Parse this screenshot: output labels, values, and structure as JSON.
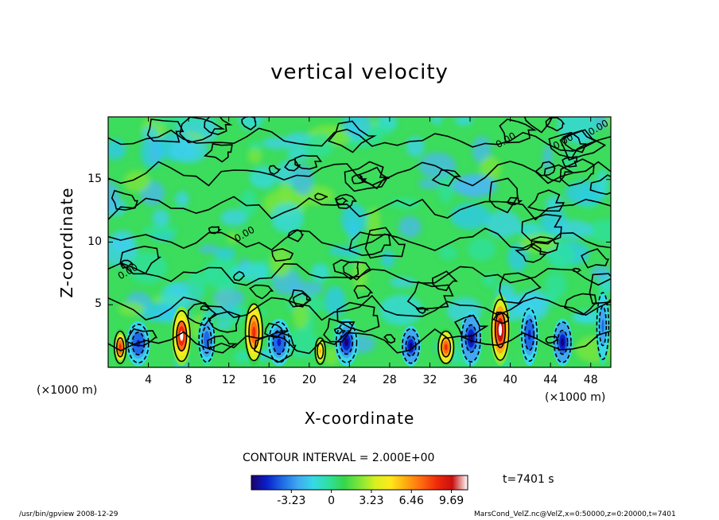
{
  "chart_data": {
    "type": "heatmap",
    "title": "vertical velocity",
    "xlabel": "X-coordinate",
    "ylabel": "Z-coordinate",
    "x_scale_left": "(×1000 m)",
    "x_scale_right": "(×1000 m)",
    "xlim": [
      0,
      50
    ],
    "ylim": [
      0,
      20
    ],
    "x_ticks": [
      "4",
      "8",
      "12",
      "16",
      "20",
      "24",
      "28",
      "32",
      "36",
      "40",
      "44",
      "48"
    ],
    "y_ticks": [
      "5",
      "10",
      "15"
    ],
    "contour_labels": [
      "0.00",
      "0.00",
      "0.00",
      "0.00",
      "0.00"
    ],
    "contour_interval": "CONTOUR INTERVAL = 2.000E+00",
    "colorbar": {
      "ticks": [
        "-3.23",
        "0",
        "3.23",
        "6.46",
        "9.69"
      ],
      "range": [
        -6.46,
        11.0
      ],
      "colors": [
        "#1a006e",
        "#0a1fc8",
        "#1e6ae6",
        "#3fa8f0",
        "#37d8e8",
        "#2fe0a0",
        "#35d64a",
        "#7ee63a",
        "#d6f020",
        "#ffe81c",
        "#ffaa10",
        "#ff6a10",
        "#f02a0a",
        "#c81010",
        "#ffffff"
      ]
    },
    "cells": [
      {
        "x": 1.2,
        "z": 1.6,
        "w": 0.7,
        "v": 8.5
      },
      {
        "x": 3.0,
        "z": 1.9,
        "w": 1.2,
        "v": -5.5
      },
      {
        "x": 7.3,
        "z": 2.5,
        "w": 1.0,
        "v": 10.5
      },
      {
        "x": 9.8,
        "z": 2.2,
        "w": 0.9,
        "v": -4.5
      },
      {
        "x": 14.5,
        "z": 2.8,
        "w": 1.0,
        "v": 9.0
      },
      {
        "x": 17.0,
        "z": 2.0,
        "w": 1.2,
        "v": -5.5
      },
      {
        "x": 21.1,
        "z": 1.3,
        "w": 0.6,
        "v": 6.0
      },
      {
        "x": 23.7,
        "z": 2.0,
        "w": 1.2,
        "v": -6.0
      },
      {
        "x": 30.1,
        "z": 1.7,
        "w": 1.0,
        "v": -6.5
      },
      {
        "x": 33.6,
        "z": 1.6,
        "w": 0.9,
        "v": 9.0
      },
      {
        "x": 36.1,
        "z": 2.3,
        "w": 1.1,
        "v": -6.5
      },
      {
        "x": 39.0,
        "z": 3.0,
        "w": 1.0,
        "v": 11.0
      },
      {
        "x": 41.9,
        "z": 2.6,
        "w": 0.9,
        "v": -5.5
      },
      {
        "x": 45.2,
        "z": 2.0,
        "w": 1.0,
        "v": -6.5
      },
      {
        "x": 49.2,
        "z": 3.3,
        "w": 0.7,
        "v": -4.0
      }
    ],
    "grid": false,
    "legend": "bottom"
  },
  "time_label": "t=7401 s",
  "footer_left": "/usr/bin/gpview   2008-12-29",
  "footer_right": "MarsCond_VelZ.nc@VelZ,x=0:50000,z=0:20000,t=7401"
}
